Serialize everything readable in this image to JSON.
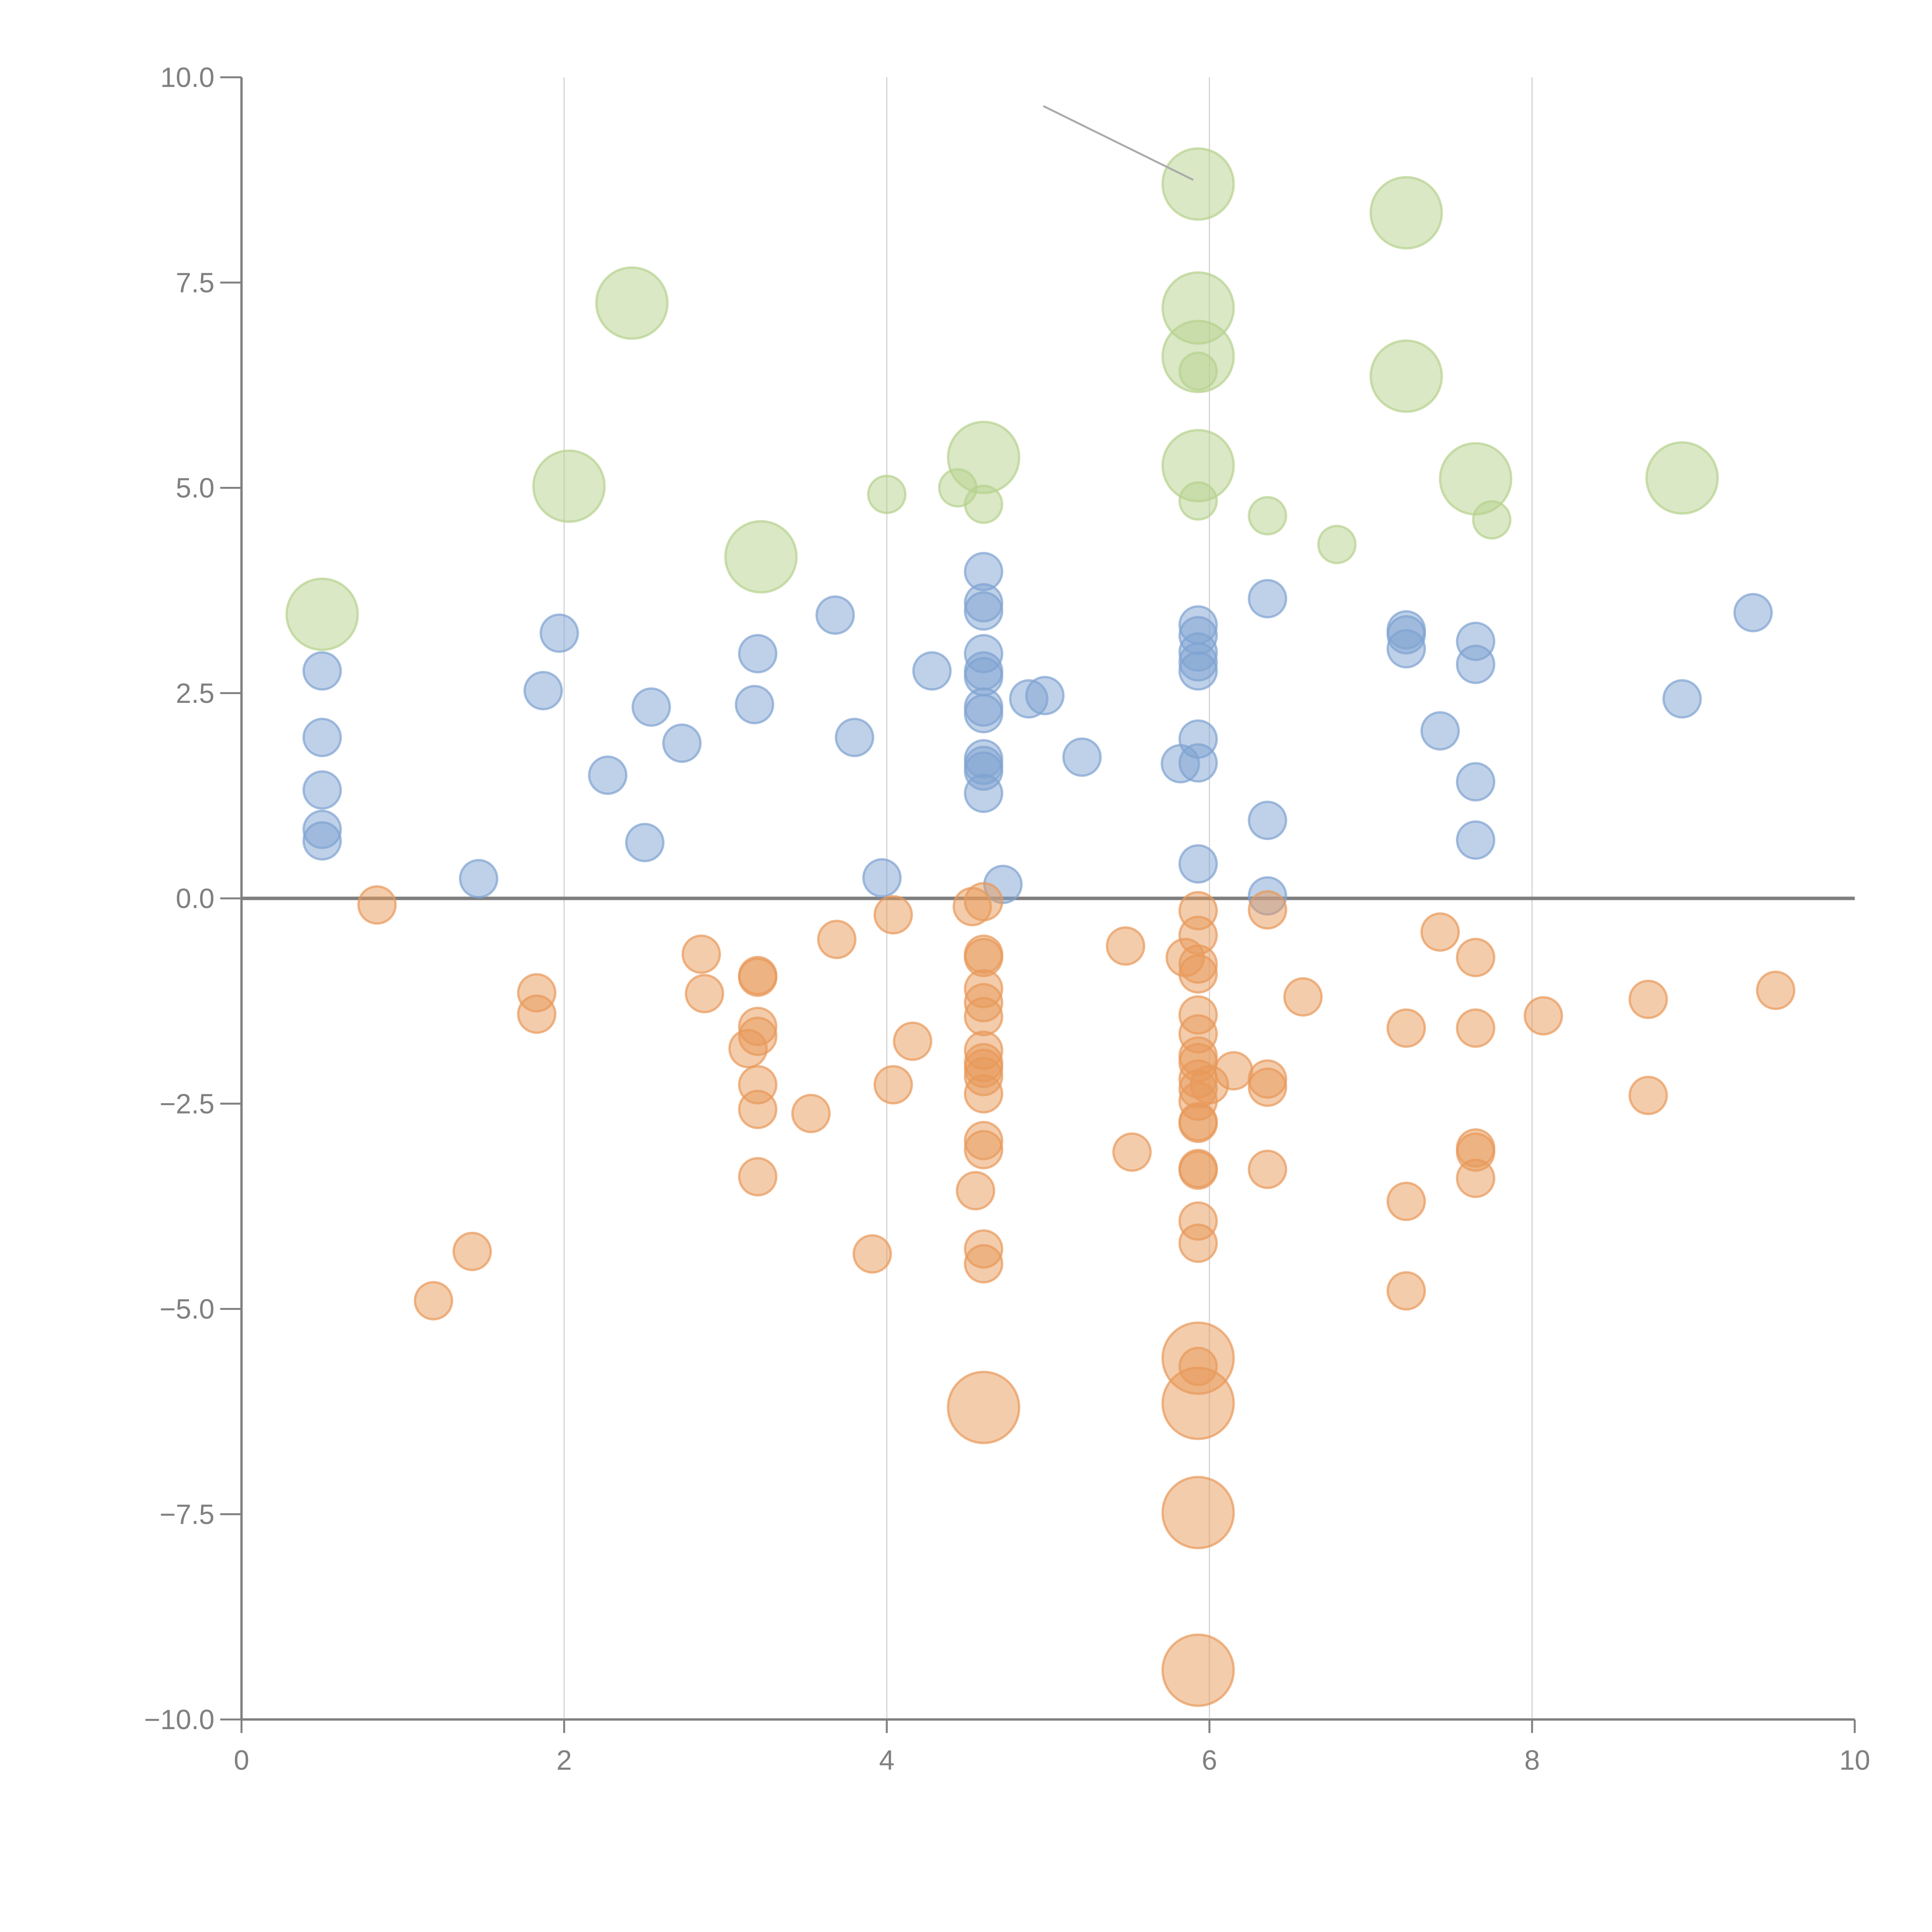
{
  "chart_data": {
    "type": "scatter",
    "title": "",
    "xlabel": "",
    "ylabel": "",
    "xlim": [
      0,
      10
    ],
    "ylim": [
      -10,
      10
    ],
    "grid": "vertical",
    "x_ticks": [
      "0",
      "2",
      "4",
      "6",
      "8",
      "10"
    ],
    "x_tick_values": [
      0,
      2,
      4,
      6,
      8,
      10
    ],
    "y_ticks": [
      "10.0",
      "7.5",
      "5.0",
      "2.5",
      "0.0",
      "−2.5",
      "−5.0",
      "−7.5",
      "−10.0"
    ],
    "y_tick_values": [
      10,
      7.5,
      5,
      2.5,
      0,
      -2.5,
      -5,
      -7.5,
      -10
    ],
    "reference_line_y": 0,
    "annotation_leader": {
      "from": [
        4.97,
        9.65
      ],
      "to": [
        5.9,
        8.75
      ]
    },
    "colors": {
      "blue": "#7fa3d1",
      "orange": "#e8995a",
      "green": "#b6d28d"
    },
    "series": [
      {
        "name": "blue",
        "color": "#7fa3d1",
        "size": "small",
        "points": [
          [
            0.5,
            2.77
          ],
          [
            0.5,
            1.96
          ],
          [
            0.5,
            1.32
          ],
          [
            0.5,
            0.84
          ],
          [
            0.5,
            0.7
          ],
          [
            1.47,
            0.24
          ],
          [
            1.87,
            2.53
          ],
          [
            1.97,
            3.23
          ],
          [
            2.27,
            1.5
          ],
          [
            2.5,
            0.68
          ],
          [
            2.54,
            2.33
          ],
          [
            2.73,
            1.89
          ],
          [
            3.2,
            2.98
          ],
          [
            3.18,
            2.36
          ],
          [
            3.68,
            3.45
          ],
          [
            3.8,
            1.96
          ],
          [
            3.97,
            0.25
          ],
          [
            4.28,
            2.77
          ],
          [
            4.6,
            3.98
          ],
          [
            4.6,
            3.6
          ],
          [
            4.6,
            3.5
          ],
          [
            4.6,
            2.98
          ],
          [
            4.6,
            2.77
          ],
          [
            4.6,
            2.7
          ],
          [
            4.6,
            2.33
          ],
          [
            4.6,
            2.25
          ],
          [
            4.6,
            1.7
          ],
          [
            4.6,
            1.62
          ],
          [
            4.6,
            1.55
          ],
          [
            4.6,
            1.28
          ],
          [
            4.72,
            0.17
          ],
          [
            4.88,
            2.43
          ],
          [
            4.98,
            2.47
          ],
          [
            5.21,
            1.72
          ],
          [
            5.82,
            1.64
          ],
          [
            5.93,
            3.33
          ],
          [
            5.93,
            3.2
          ],
          [
            5.93,
            3.0
          ],
          [
            5.93,
            2.88
          ],
          [
            5.93,
            2.77
          ],
          [
            5.93,
            1.94
          ],
          [
            5.93,
            1.65
          ],
          [
            5.93,
            0.42
          ],
          [
            6.36,
            3.65
          ],
          [
            6.36,
            0.95
          ],
          [
            6.36,
            0.03
          ],
          [
            7.22,
            3.27
          ],
          [
            7.22,
            3.21
          ],
          [
            7.22,
            3.04
          ],
          [
            7.43,
            2.04
          ],
          [
            7.65,
            3.13
          ],
          [
            7.65,
            2.85
          ],
          [
            7.65,
            1.42
          ],
          [
            7.65,
            0.71
          ],
          [
            8.93,
            2.43
          ],
          [
            9.37,
            3.48
          ]
        ]
      },
      {
        "name": "orange",
        "color": "#e8995a",
        "size": "small",
        "points": [
          [
            0.84,
            -0.08
          ],
          [
            1.19,
            -4.9
          ],
          [
            1.43,
            -4.3
          ],
          [
            1.83,
            -1.15
          ],
          [
            1.83,
            -1.41
          ],
          [
            2.85,
            -0.68
          ],
          [
            2.87,
            -1.16
          ],
          [
            3.2,
            -0.94
          ],
          [
            3.2,
            -0.96
          ],
          [
            3.2,
            -1.56
          ],
          [
            3.2,
            -1.68
          ],
          [
            3.14,
            -1.83
          ],
          [
            3.2,
            -2.27
          ],
          [
            3.2,
            -2.57
          ],
          [
            3.2,
            -3.39
          ],
          [
            3.53,
            -2.62
          ],
          [
            3.69,
            -0.5
          ],
          [
            3.91,
            -4.33
          ],
          [
            4.04,
            -0.2
          ],
          [
            4.04,
            -2.27
          ],
          [
            4.16,
            -1.74
          ],
          [
            4.53,
            -0.1
          ],
          [
            4.6,
            -0.04
          ],
          [
            4.6,
            -0.68
          ],
          [
            4.6,
            -0.72
          ],
          [
            4.6,
            -1.1
          ],
          [
            4.6,
            -1.27
          ],
          [
            4.6,
            -1.44
          ],
          [
            4.6,
            -1.85
          ],
          [
            4.6,
            -2.0
          ],
          [
            4.6,
            -2.07
          ],
          [
            4.6,
            -2.17
          ],
          [
            4.6,
            -2.38
          ],
          [
            4.6,
            -2.95
          ],
          [
            4.6,
            -3.06
          ],
          [
            4.55,
            -3.56
          ],
          [
            4.6,
            -4.27
          ],
          [
            4.6,
            -4.45
          ],
          [
            5.48,
            -0.58
          ],
          [
            5.52,
            -3.09
          ],
          [
            5.85,
            -0.72
          ],
          [
            5.93,
            -0.15
          ],
          [
            5.93,
            -0.45
          ],
          [
            5.93,
            -0.8
          ],
          [
            5.93,
            -0.92
          ],
          [
            5.93,
            -1.42
          ],
          [
            5.93,
            -1.65
          ],
          [
            5.93,
            -1.92
          ],
          [
            5.93,
            -2.0
          ],
          [
            5.93,
            -2.2
          ],
          [
            5.93,
            -2.32
          ],
          [
            5.93,
            -2.47
          ],
          [
            5.93,
            -2.72
          ],
          [
            5.93,
            -2.74
          ],
          [
            5.93,
            -3.29
          ],
          [
            5.93,
            -3.31
          ],
          [
            5.93,
            -3.93
          ],
          [
            5.93,
            -4.2
          ],
          [
            5.93,
            -5.7
          ],
          [
            6.0,
            -2.27
          ],
          [
            6.15,
            -2.1
          ],
          [
            6.36,
            -0.14
          ],
          [
            6.36,
            -2.2
          ],
          [
            6.36,
            -2.3
          ],
          [
            6.36,
            -3.3
          ],
          [
            6.58,
            -1.2
          ],
          [
            7.22,
            -1.58
          ],
          [
            7.22,
            -3.69
          ],
          [
            7.22,
            -4.78
          ],
          [
            7.43,
            -0.41
          ],
          [
            7.65,
            -0.72
          ],
          [
            7.65,
            -1.58
          ],
          [
            7.65,
            -3.04
          ],
          [
            7.65,
            -3.09
          ],
          [
            7.65,
            -3.41
          ],
          [
            8.07,
            -1.43
          ],
          [
            8.72,
            -1.23
          ],
          [
            8.72,
            -2.4
          ],
          [
            9.51,
            -1.12
          ]
        ]
      },
      {
        "name": "orange-large",
        "color": "#e8995a",
        "size": "large",
        "points": [
          [
            4.6,
            -6.2
          ],
          [
            5.93,
            -5.6
          ],
          [
            5.93,
            -6.15
          ],
          [
            5.93,
            -7.48
          ],
          [
            5.93,
            -9.4
          ]
        ]
      },
      {
        "name": "green",
        "color": "#b6d28d",
        "size": "small",
        "points": [
          [
            4.0,
            4.92
          ],
          [
            4.44,
            5.0
          ],
          [
            4.6,
            4.8
          ],
          [
            5.93,
            6.42
          ],
          [
            5.93,
            4.84
          ],
          [
            6.36,
            4.66
          ],
          [
            6.79,
            4.31
          ],
          [
            7.75,
            4.61
          ]
        ]
      },
      {
        "name": "green-large",
        "color": "#b6d28d",
        "size": "large",
        "points": [
          [
            0.5,
            3.46
          ],
          [
            2.03,
            5.02
          ],
          [
            2.42,
            7.25
          ],
          [
            3.22,
            4.16
          ],
          [
            4.6,
            5.37
          ],
          [
            5.93,
            8.7
          ],
          [
            5.93,
            7.19
          ],
          [
            5.93,
            6.6
          ],
          [
            5.93,
            5.27
          ],
          [
            7.22,
            8.35
          ],
          [
            7.22,
            6.36
          ],
          [
            7.65,
            5.11
          ],
          [
            8.93,
            5.12
          ]
        ]
      }
    ]
  }
}
